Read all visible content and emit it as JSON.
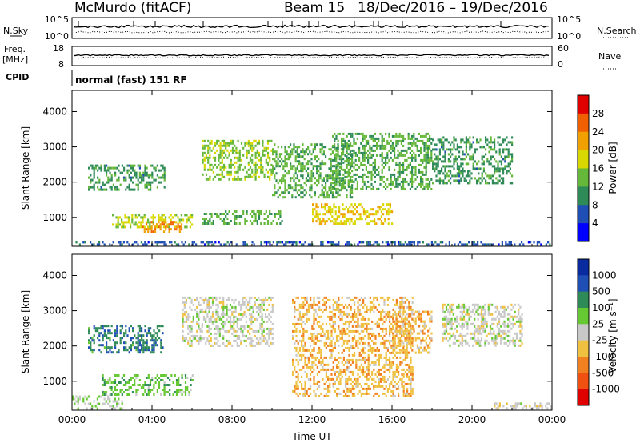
{
  "header": {
    "station": "McMurdo (fitACF)",
    "beam": "Beam 15",
    "date_range": "18/Dec/2016 – 19/Dec/2016"
  },
  "param_panels": {
    "nsky_label": "N.Sky",
    "nsearch_label": "N.Search",
    "nsky_ticks": [
      "10^5",
      "10^0"
    ],
    "nsearch_ticks": [
      "10^5",
      "10^0"
    ],
    "freq_label_top": "Freq.",
    "freq_label_unit": "[MHz]",
    "freq_ticks": [
      "18",
      "8"
    ],
    "nave_label": "Nave",
    "nave_ticks": [
      "60",
      "0"
    ],
    "cpid_label": "CPID",
    "cpid_value": "normal (fast) 151 RF"
  },
  "colors": {
    "power": [
      "#0000ff",
      "#1f4fb4",
      "#2e8b57",
      "#66b83a",
      "#d8d800",
      "#f0a000",
      "#f06000",
      "#e00000"
    ],
    "velocity": [
      "#e00000",
      "#f05010",
      "#f08020",
      "#f0c040",
      "#c8c8c8",
      "#66c832",
      "#2e8b57",
      "#1f4fb4",
      "#0a2aa0"
    ],
    "ground_scatter": "#b0b0b0"
  },
  "chart_data": [
    {
      "type": "heatmap",
      "title": "",
      "xlabel": "",
      "ylabel": "Slant Range [km]",
      "x_ticks": [
        "00:00",
        "04:00",
        "08:00",
        "12:00",
        "16:00",
        "20:00",
        "00:00"
      ],
      "y_ticks": [
        "1000",
        "2000",
        "3000",
        "4000"
      ],
      "xlim_hours": [
        0,
        24
      ],
      "ylim_km": [
        180,
        4600
      ],
      "colorbar": {
        "label": "Power [dB]",
        "ticks": [
          "4",
          "8",
          "12",
          "16",
          "20",
          "24",
          "28"
        ],
        "range": [
          0,
          30
        ]
      },
      "echo_regions": [
        {
          "t0": 0.8,
          "t1": 4.6,
          "r0": 1800,
          "r1": 2500,
          "value": 10
        },
        {
          "t0": 2.0,
          "t1": 6.0,
          "r0": 700,
          "r1": 1100,
          "value": 16
        },
        {
          "t0": 3.5,
          "t1": 5.5,
          "r0": 600,
          "r1": 900,
          "value": 22
        },
        {
          "t0": 6.5,
          "t1": 10.0,
          "r0": 2100,
          "r1": 3200,
          "value": 14
        },
        {
          "t0": 6.5,
          "t1": 10.5,
          "r0": 800,
          "r1": 1200,
          "value": 12
        },
        {
          "t0": 10.0,
          "t1": 14.0,
          "r0": 1600,
          "r1": 3100,
          "value": 12
        },
        {
          "t0": 12.0,
          "t1": 16.0,
          "r0": 800,
          "r1": 1400,
          "value": 18
        },
        {
          "t0": 13.0,
          "t1": 18.0,
          "r0": 1800,
          "r1": 3400,
          "value": 12
        },
        {
          "t0": 18.0,
          "t1": 22.0,
          "r0": 2000,
          "r1": 3300,
          "value": 10
        },
        {
          "t0": 0.0,
          "t1": 24.0,
          "r0": 200,
          "r1": 330,
          "value": 6
        }
      ]
    },
    {
      "type": "heatmap",
      "title": "",
      "xlabel": "Time UT",
      "ylabel": "Slant Range [km]",
      "x_ticks": [
        "00:00",
        "04:00",
        "08:00",
        "12:00",
        "16:00",
        "20:00",
        "00:00"
      ],
      "y_ticks": [
        "1000",
        "2000",
        "3000",
        "4000"
      ],
      "xlim_hours": [
        0,
        24
      ],
      "ylim_km": [
        180,
        4600
      ],
      "colorbar": {
        "label": "Velocity [m s⁻¹]",
        "ticks": [
          "1000",
          "500",
          "100",
          "25",
          "-25",
          "-100",
          "-500",
          "-1000"
        ],
        "range": [
          -1200,
          1200
        ]
      },
      "echo_regions": [
        {
          "t0": 1.5,
          "t1": 6.0,
          "r0": 600,
          "r1": 1200,
          "value": 300
        },
        {
          "t0": 0.8,
          "t1": 4.5,
          "r0": 1800,
          "r1": 2600,
          "value": 600
        },
        {
          "t0": 5.5,
          "t1": 10.0,
          "r0": 2000,
          "r1": 3400,
          "value": 0
        },
        {
          "t0": 11.0,
          "t1": 17.0,
          "r0": 600,
          "r1": 3400,
          "value": -300
        },
        {
          "t0": 16.0,
          "t1": 18.0,
          "r0": 1800,
          "r1": 3000,
          "value": -300
        },
        {
          "t0": 18.5,
          "t1": 22.5,
          "r0": 2000,
          "r1": 3200,
          "value": 0
        },
        {
          "t0": 21.0,
          "t1": 24.0,
          "r0": 200,
          "r1": 400,
          "value": -60
        },
        {
          "t0": 0.0,
          "t1": 2.5,
          "r0": 200,
          "r1": 600,
          "value": 80
        }
      ]
    }
  ]
}
